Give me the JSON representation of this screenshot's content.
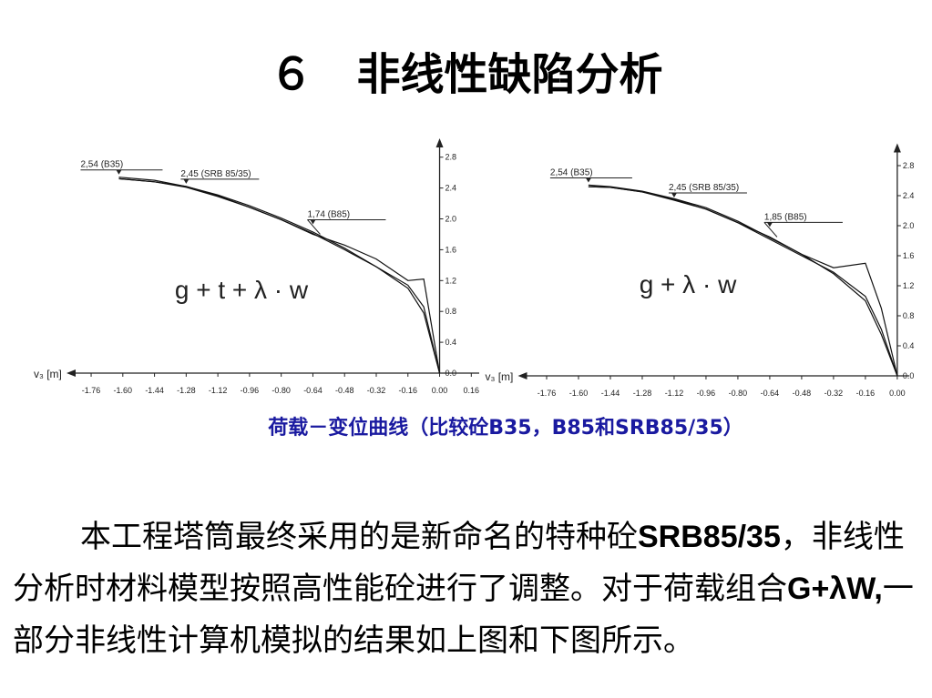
{
  "title": "６　非线性缺陷分析",
  "chart_data": [
    {
      "type": "line",
      "formula": "g + t + λ · w",
      "xlabel": "v₃ [m]",
      "x": [
        -1.62,
        -1.44,
        -1.28,
        -1.12,
        -0.96,
        -0.8,
        -0.64,
        -0.48,
        -0.32,
        -0.16,
        -0.08,
        0
      ],
      "series": [
        {
          "color": "#111111",
          "values": [
            2.54,
            2.5,
            2.42,
            2.31,
            2.17,
            2.01,
            1.83,
            1.62,
            1.38,
            1.1,
            0.78,
            0
          ]
        },
        {
          "color": "#111111",
          "values": [
            2.52,
            2.48,
            2.42,
            2.3,
            2.15,
            1.99,
            1.81,
            1.6,
            1.38,
            1.14,
            0.86,
            0
          ]
        },
        {
          "color": "#111111",
          "values": [
            2.52,
            2.48,
            2.41,
            2.29,
            2.15,
            1.99,
            1.8,
            1.66,
            1.48,
            1.2,
            1.22,
            0
          ]
        }
      ],
      "annotations": [
        "2,54 (B35)",
        "2,45 (SRB 85/35)",
        "1,74 (B85)"
      ],
      "xlim": [
        -1.82,
        0.2
      ],
      "ylim": [
        0,
        2.95
      ],
      "xticks": [
        -1.76,
        {
          "value": -1.6,
          "label": "-1.60"
        },
        -1.44,
        -1.28,
        -1.12,
        -0.96,
        {
          "value": -0.8,
          "label": "-0.80"
        },
        -0.64,
        -0.48,
        -0.32,
        -0.16,
        {
          "value": 0,
          "label": "0.00"
        },
        0.16
      ],
      "yticks": [
        {
          "value": 0,
          "label": "0.0"
        },
        0.4,
        0.8,
        1.2,
        1.6,
        {
          "value": 2,
          "label": "2.0"
        },
        2.4,
        2.8
      ]
    },
    {
      "type": "line",
      "formula": "g + λ · w",
      "xlabel": "v₃ [m]",
      "x": [
        -1.55,
        -1.44,
        -1.28,
        -1.12,
        -0.96,
        -0.8,
        -0.64,
        -0.48,
        -0.32,
        -0.16,
        -0.08,
        0
      ],
      "series": [
        {
          "color": "#111111",
          "values": [
            2.54,
            2.52,
            2.46,
            2.36,
            2.24,
            2.06,
            1.84,
            1.62,
            1.36,
            1.0,
            0.55,
            0
          ]
        },
        {
          "color": "#111111",
          "values": [
            2.52,
            2.51,
            2.45,
            2.34,
            2.22,
            2.04,
            1.82,
            1.6,
            1.38,
            1.06,
            0.62,
            0
          ]
        },
        {
          "color": "#111111",
          "values": [
            2.52,
            2.51,
            2.45,
            2.35,
            2.22,
            2.04,
            1.85,
            1.62,
            1.44,
            1.5,
            0.9,
            0
          ]
        }
      ],
      "annotations": [
        "2,54 (B35)",
        "2,45 (SRB 85/35)",
        "1,85 (B85)"
      ],
      "xlim": [
        -1.84,
        0.06
      ],
      "ylim": [
        0,
        3.0
      ],
      "xticks": [
        -1.76,
        {
          "value": -1.6,
          "label": "-1.60"
        },
        -1.44,
        -1.28,
        -1.12,
        -0.96,
        {
          "value": -0.8,
          "label": "-0.80"
        },
        -0.64,
        -0.48,
        -0.32,
        -0.16,
        {
          "value": 0,
          "label": "0.00"
        }
      ],
      "yticks": [
        {
          "value": 0,
          "label": "0.0"
        },
        0.4,
        0.8,
        1.2,
        1.6,
        {
          "value": 2,
          "label": "2.0"
        },
        2.4,
        2.8
      ]
    }
  ],
  "caption": "荷载－变位曲线（比较砼B35，B85和SRB85/35）",
  "paragraph": [
    "本工程塔筒最终采用的是新命名的特种砼",
    "SRB85/35",
    "，非线性分析时材料模型按照高性能砼进行了调整。对于荷载组合",
    "G+λW,",
    "一部分非线性计算机模拟的结果如上图和下图所示。"
  ]
}
